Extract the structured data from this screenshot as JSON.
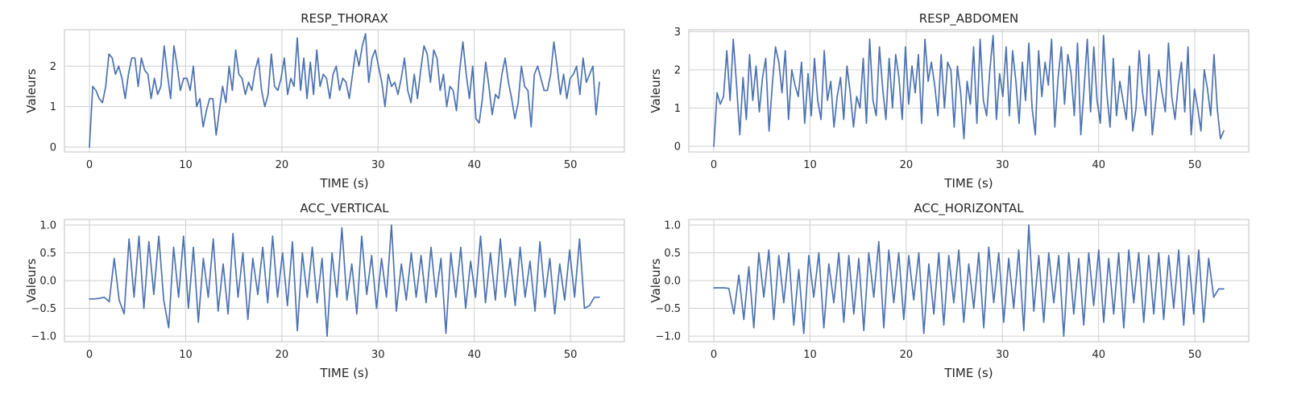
{
  "figure": {
    "line_color": "#4c72b0",
    "grid_color": "#cfcfcf",
    "frame_color": "#cccccc",
    "background": "#ffffff"
  },
  "chart_data": [
    {
      "type": "line",
      "title": "RESP_THORAX",
      "xlabel": "TIME (s)",
      "ylabel": "Valeurs",
      "xlim": [
        -2.6,
        55.6
      ],
      "ylim": [
        -0.12,
        2.9
      ],
      "xticks": [
        0,
        10,
        20,
        30,
        40,
        50
      ],
      "yticks": [
        0,
        1,
        2
      ],
      "ytick_labels": [
        "0",
        "1",
        "2"
      ],
      "grid": true,
      "series": [
        {
          "values": [
            0.0,
            1.5,
            1.4,
            1.2,
            1.1,
            1.5,
            2.3,
            2.2,
            1.8,
            2.0,
            1.7,
            1.2,
            1.8,
            2.2,
            2.2,
            1.5,
            2.2,
            1.9,
            1.8,
            1.2,
            1.7,
            1.3,
            1.5,
            2.5,
            1.8,
            1.2,
            2.5,
            2.0,
            1.4,
            1.7,
            1.7,
            1.4,
            2.0,
            1.0,
            1.2,
            0.5,
            0.9,
            1.2,
            1.2,
            0.3,
            0.9,
            1.5,
            1.1,
            2.0,
            1.4,
            2.4,
            1.8,
            1.7,
            1.3,
            1.6,
            1.4,
            1.9,
            2.2,
            1.4,
            1.0,
            1.3,
            2.3,
            1.5,
            1.4,
            1.7,
            2.2,
            1.3,
            1.7,
            1.5,
            2.7,
            1.4,
            2.2,
            1.2,
            2.1,
            1.3,
            2.4,
            1.5,
            1.8,
            1.7,
            1.2,
            1.8,
            2.0,
            1.4,
            1.7,
            1.6,
            1.2,
            1.8,
            2.4,
            2.0,
            2.5,
            2.8,
            1.6,
            2.2,
            2.4,
            2.0,
            1.6,
            1.0,
            1.8,
            1.5,
            1.6,
            1.3,
            1.7,
            2.2,
            1.4,
            1.1,
            1.8,
            1.2,
            1.9,
            2.5,
            2.3,
            1.6,
            2.4,
            2.2,
            1.4,
            1.8,
            1.0,
            1.5,
            1.4,
            0.9,
            1.9,
            2.6,
            1.8,
            1.2,
            2.0,
            0.7,
            0.6,
            1.2,
            2.1,
            1.5,
            0.8,
            1.3,
            1.2,
            1.8,
            2.2,
            1.6,
            1.2,
            0.7,
            1.1,
            2.0,
            1.5,
            1.4,
            0.5,
            1.8,
            2.0,
            1.7,
            1.4,
            1.4,
            1.8,
            2.6,
            2.0,
            1.3,
            1.8,
            1.2,
            1.7,
            1.8,
            2.0,
            1.3,
            2.2,
            1.6,
            1.8,
            2.0,
            0.8,
            1.6
          ]
        }
      ]
    },
    {
      "type": "line",
      "title": "RESP_ABDOMEN",
      "xlabel": "TIME (s)",
      "ylabel": "Valeurs",
      "xlim": [
        -2.6,
        55.6
      ],
      "ylim": [
        -0.15,
        3.05
      ],
      "xticks": [
        0,
        10,
        20,
        30,
        40,
        50
      ],
      "yticks": [
        0,
        1,
        2,
        3
      ],
      "ytick_labels": [
        "0",
        "1",
        "2",
        "3"
      ],
      "grid": true,
      "series": [
        {
          "values": [
            0.0,
            1.4,
            1.1,
            1.3,
            2.5,
            1.2,
            2.8,
            1.6,
            0.3,
            1.8,
            0.7,
            2.4,
            1.2,
            2.1,
            0.9,
            1.8,
            2.3,
            0.4,
            1.6,
            2.6,
            2.2,
            1.4,
            2.5,
            0.7,
            2.0,
            1.6,
            1.3,
            2.2,
            0.6,
            1.9,
            0.8,
            2.3,
            1.2,
            0.7,
            2.5,
            1.2,
            1.7,
            0.5,
            1.3,
            1.8,
            0.7,
            2.1,
            1.4,
            0.5,
            1.3,
            1.0,
            2.3,
            0.6,
            2.8,
            1.2,
            0.8,
            2.6,
            1.5,
            0.7,
            2.3,
            1.0,
            2.4,
            1.8,
            0.7,
            2.6,
            1.1,
            2.1,
            1.4,
            2.4,
            0.6,
            2.8,
            1.7,
            2.2,
            1.6,
            0.8,
            2.4,
            1.0,
            2.2,
            2.0,
            0.5,
            2.1,
            1.4,
            0.2,
            1.7,
            1.1,
            2.6,
            0.6,
            2.8,
            1.2,
            0.8,
            2.0,
            2.9,
            0.7,
            1.9,
            1.3,
            2.6,
            0.8,
            2.5,
            1.7,
            0.6,
            2.2,
            1.2,
            2.7,
            1.0,
            0.3,
            2.5,
            1.3,
            2.2,
            1.6,
            2.8,
            0.5,
            1.8,
            2.6,
            1.1,
            2.4,
            1.9,
            0.8,
            2.7,
            0.3,
            1.5,
            2.8,
            0.9,
            2.6,
            1.2,
            0.6,
            2.9,
            1.4,
            0.5,
            2.3,
            0.8,
            1.7,
            1.2,
            0.7,
            2.1,
            0.4,
            1.0,
            2.5,
            1.4,
            0.8,
            2.4,
            0.3,
            1.1,
            2.0,
            1.4,
            0.9,
            2.7,
            1.3,
            0.7,
            1.6,
            2.2,
            0.9,
            2.6,
            0.3,
            1.5,
            1.0,
            0.4,
            2.0,
            1.5,
            0.8,
            2.4,
            1.0,
            0.2,
            0.4
          ]
        }
      ]
    },
    {
      "type": "line",
      "title": "ACC_VERTICAL",
      "xlabel": "TIME (s)",
      "ylabel": "Valeurs",
      "xlim": [
        -2.6,
        55.6
      ],
      "ylim": [
        -1.1,
        1.1
      ],
      "xticks": [
        0,
        10,
        20,
        30,
        40,
        50
      ],
      "yticks": [
        -1.0,
        -0.5,
        0.0,
        0.5,
        1.0
      ],
      "ytick_labels": [
        "−1.0",
        "−0.5",
        "0.0",
        "0.5",
        "1.0"
      ],
      "grid": true,
      "series": [
        {
          "values": [
            -0.33,
            -0.33,
            -0.32,
            -0.3,
            -0.38,
            0.4,
            -0.35,
            -0.6,
            0.75,
            -0.3,
            0.8,
            -0.5,
            0.7,
            -0.25,
            0.8,
            -0.35,
            -0.85,
            0.6,
            -0.3,
            0.8,
            -0.5,
            0.6,
            -0.75,
            0.4,
            -0.3,
            0.75,
            -0.55,
            0.3,
            -0.6,
            0.85,
            -0.3,
            0.5,
            -0.7,
            0.4,
            -0.25,
            0.6,
            -0.4,
            0.8,
            -0.3,
            0.5,
            -0.45,
            0.7,
            -0.9,
            0.5,
            -0.3,
            0.6,
            -0.4,
            0.4,
            -1.0,
            0.5,
            -0.3,
            0.95,
            -0.35,
            0.3,
            -0.6,
            0.8,
            -0.25,
            0.45,
            -0.5,
            0.4,
            -0.3,
            1.0,
            -0.55,
            0.3,
            -0.35,
            0.5,
            -0.3,
            0.45,
            -0.4,
            0.6,
            -0.3,
            0.4,
            -0.95,
            0.5,
            -0.3,
            0.6,
            -0.5,
            0.35,
            -0.3,
            0.8,
            -0.4,
            0.5,
            -0.35,
            0.75,
            -0.3,
            0.4,
            -0.45,
            0.6,
            -0.3,
            0.35,
            -0.55,
            0.7,
            -0.3,
            0.4,
            -0.6,
            0.3,
            -0.35,
            0.55,
            -0.3,
            0.75,
            -0.5,
            -0.45,
            -0.3,
            -0.3
          ]
        }
      ]
    },
    {
      "type": "line",
      "title": "ACC_HORIZONTAL",
      "xlabel": "TIME (s)",
      "ylabel": "Valeurs",
      "xlim": [
        -2.6,
        55.6
      ],
      "ylim": [
        -1.1,
        1.1
      ],
      "xticks": [
        0,
        10,
        20,
        30,
        40,
        50
      ],
      "yticks": [
        -1.0,
        -0.5,
        0.0,
        0.5,
        1.0
      ],
      "ytick_labels": [
        "−1.0",
        "−0.5",
        "0.0",
        "0.5",
        "1.0"
      ],
      "grid": true,
      "series": [
        {
          "values": [
            -0.13,
            -0.13,
            -0.13,
            -0.14,
            -0.6,
            0.1,
            -0.7,
            0.25,
            -0.85,
            0.5,
            -0.3,
            0.55,
            -0.7,
            0.45,
            -0.4,
            0.5,
            -0.8,
            0.2,
            -0.95,
            0.45,
            -0.3,
            0.5,
            -0.85,
            0.3,
            -0.4,
            0.5,
            -0.75,
            0.45,
            -0.6,
            0.4,
            -0.9,
            0.5,
            -0.3,
            0.7,
            -0.85,
            0.55,
            -0.4,
            0.5,
            -0.7,
            0.45,
            -0.35,
            0.5,
            -0.95,
            0.3,
            -0.6,
            0.5,
            -0.8,
            0.45,
            -0.4,
            0.55,
            -0.75,
            0.3,
            -0.5,
            0.5,
            -0.85,
            0.6,
            -0.4,
            0.5,
            -0.75,
            0.4,
            -0.5,
            0.55,
            -0.9,
            1.0,
            -0.55,
            0.45,
            -0.75,
            0.5,
            -0.4,
            0.45,
            -1.0,
            0.5,
            -0.6,
            0.4,
            -0.8,
            0.5,
            -0.45,
            0.55,
            -0.75,
            0.4,
            -0.6,
            0.5,
            -0.85,
            0.55,
            -0.4,
            0.5,
            -0.75,
            0.45,
            -0.6,
            0.5,
            -0.7,
            0.45,
            -0.5,
            0.55,
            -0.8,
            0.45,
            -0.6,
            0.55,
            -0.75,
            0.4,
            -0.3,
            -0.15,
            -0.15
          ]
        }
      ]
    }
  ]
}
